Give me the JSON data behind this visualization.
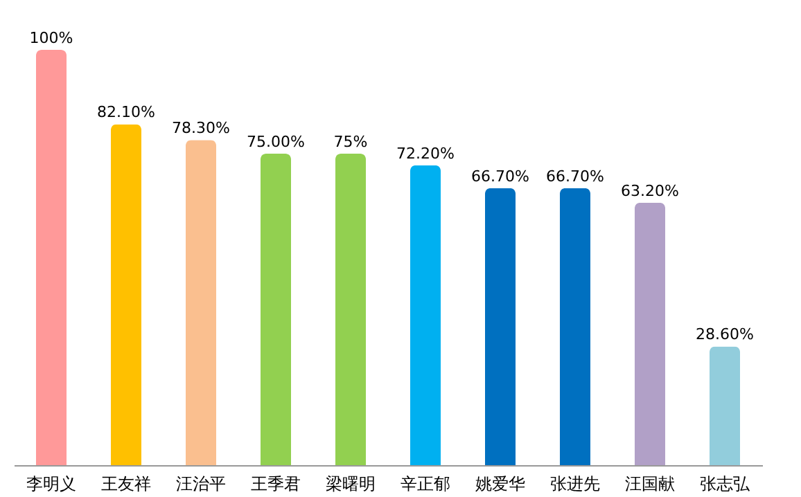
{
  "chart_data": {
    "type": "bar",
    "categories": [
      "李明义",
      "王友祥",
      "汪治平",
      "王季君",
      "梁曙明",
      "辛正郁",
      "姚爱华",
      "张进先",
      "汪国献",
      "张志弘"
    ],
    "values": [
      100,
      82.1,
      78.3,
      75,
      75,
      72.2,
      66.7,
      66.7,
      63.2,
      28.6
    ],
    "value_labels": [
      "100%",
      "82.10%",
      "78.30%",
      "75.00%",
      "75%",
      "72.20%",
      "66.70%",
      "66.70%",
      "63.20%",
      "28.60%"
    ],
    "colors": [
      "#ff9999",
      "#ffc000",
      "#fabf8f",
      "#92d050",
      "#92d050",
      "#00b0f0",
      "#0070c0",
      "#0070c0",
      "#b1a0c7",
      "#92cddc"
    ]
  }
}
